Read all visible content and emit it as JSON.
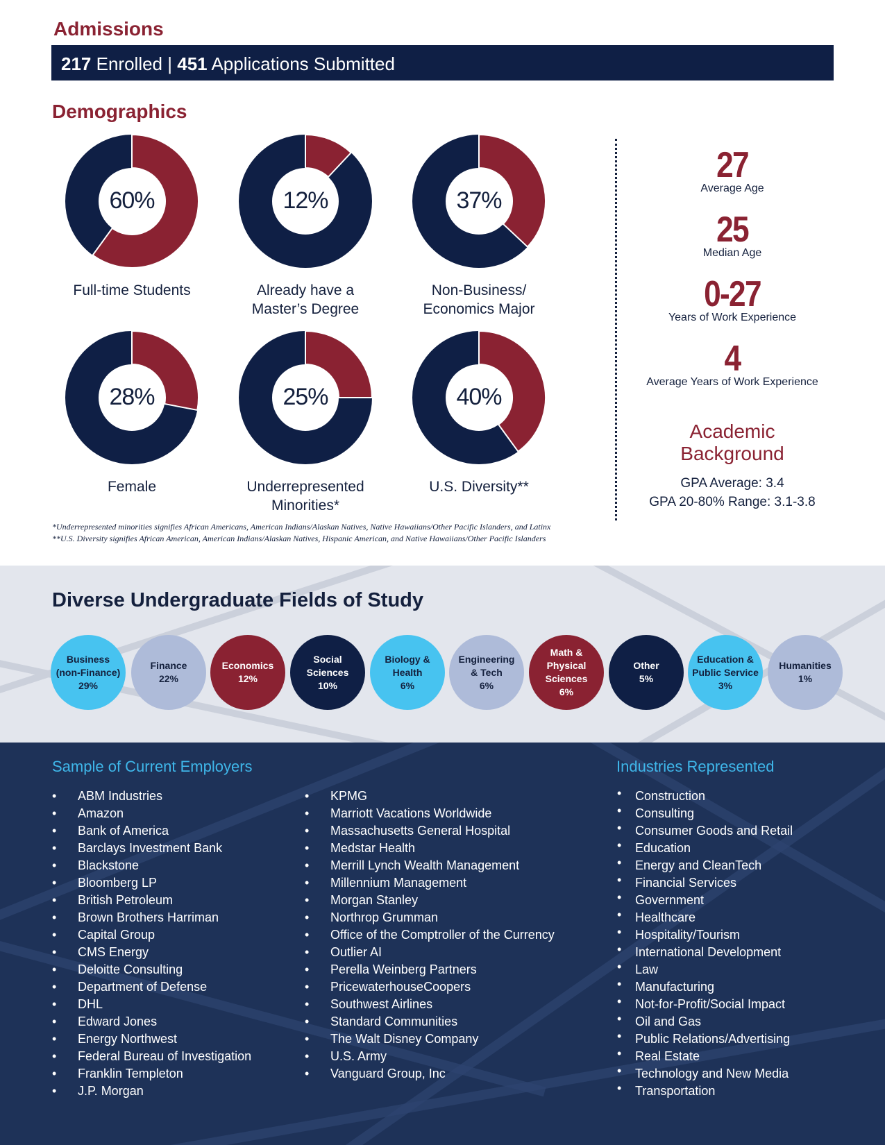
{
  "admissions": {
    "heading": "Admissions",
    "enrolled_count": "217",
    "enrolled_label": "Enrolled",
    "separator": "|",
    "applications_count": "451",
    "applications_label": "Applications Submitted"
  },
  "demographics": {
    "heading": "Demographics",
    "charts": [
      {
        "percent": "60%",
        "value": 60,
        "label": "Full-time Students"
      },
      {
        "percent": "12%",
        "value": 12,
        "label": "Already have a\nMaster’s Degree"
      },
      {
        "percent": "37%",
        "value": 37,
        "label": "Non-Business/\nEconomics Major"
      },
      {
        "percent": "28%",
        "value": 28,
        "label": "Female"
      },
      {
        "percent": "25%",
        "value": 25,
        "label": "Underrepresented\nMinorities*"
      },
      {
        "percent": "40%",
        "value": 40,
        "label": "U.S. Diversity**"
      }
    ],
    "footnotes": [
      "*Underrepresented minorities signifies African Americans, American Indians/Alaskan Natives, Native Hawaiians/Other Pacific Islanders, and Latinx",
      "**U.S. Diversity signifies African American,  American Indians/Alaskan Natives, Hispanic American, and Native Hawaiians/Other Pacific Islanders"
    ]
  },
  "stats": [
    {
      "value": "27",
      "label": "Average Age"
    },
    {
      "value": "25",
      "label": "Median Age"
    },
    {
      "value": "0-27",
      "label": "Years of Work Experience"
    },
    {
      "value": "4",
      "label": "Average Years of Work Experience"
    }
  ],
  "academic": {
    "heading_line1": "Academic",
    "heading_line2": "Background",
    "gpa_average": "GPA Average: 3.4",
    "gpa_range": "GPA 20-80% Range: 3.1-3.8"
  },
  "fields": {
    "heading": "Diverse Undergraduate Fields of Study",
    "items": [
      {
        "name": "Business\n(non-Finance)",
        "percent": "29%",
        "bg": "#47c3f0",
        "fg": "#14203d"
      },
      {
        "name": "Finance",
        "percent": "22%",
        "bg": "#aebbd9",
        "fg": "#14203d"
      },
      {
        "name": "Economics",
        "percent": "12%",
        "bg": "#8a2232",
        "fg": "#ffffff"
      },
      {
        "name": "Social\nSciences",
        "percent": "10%",
        "bg": "#0f1f45",
        "fg": "#ffffff"
      },
      {
        "name": "Biology &\nHealth",
        "percent": "6%",
        "bg": "#47c3f0",
        "fg": "#14203d"
      },
      {
        "name": "Engineering\n& Tech",
        "percent": "6%",
        "bg": "#aebbd9",
        "fg": "#14203d"
      },
      {
        "name": "Math &\nPhysical\nSciences",
        "percent": "6%",
        "bg": "#8a2232",
        "fg": "#ffffff"
      },
      {
        "name": "Other",
        "percent": "5%",
        "bg": "#0f1f45",
        "fg": "#ffffff"
      },
      {
        "name": "Education &\nPublic Service",
        "percent": "3%",
        "bg": "#47c3f0",
        "fg": "#14203d"
      },
      {
        "name": "Humanities",
        "percent": "1%",
        "bg": "#aebbd9",
        "fg": "#14203d"
      }
    ]
  },
  "employers": {
    "heading": "Sample of Current Employers",
    "column1": [
      "ABM Industries",
      "Amazon",
      "Bank of America",
      "Barclays Investment Bank",
      "Blackstone",
      "Bloomberg LP",
      "British Petroleum",
      "Brown Brothers Harriman",
      "Capital Group",
      "CMS Energy",
      "Deloitte Consulting",
      "Department of Defense",
      "DHL",
      "Edward Jones",
      "Energy Northwest",
      "Federal Bureau of Investigation",
      "Franklin Templeton",
      "J.P. Morgan"
    ],
    "column2": [
      "KPMG",
      "Marriott Vacations Worldwide",
      "Massachusetts General Hospital",
      "Medstar Health",
      "Merrill Lynch Wealth Management",
      "Millennium Management",
      "Morgan Stanley",
      "Northrop Grumman",
      "Office of the Comptroller of the Currency",
      "Outlier AI",
      "Perella Weinberg Partners",
      "PricewaterhouseCoopers",
      "Southwest Airlines",
      "Standard Communities",
      "The Walt Disney Company",
      "U.S. Army",
      "Vanguard Group, Inc"
    ]
  },
  "industries": {
    "heading": "Industries Represented",
    "items": [
      "Construction",
      "Consulting",
      "Consumer Goods and Retail",
      "Education",
      "Energy and CleanTech",
      "Financial Services",
      "Government",
      "Healthcare",
      "Hospitality/Tourism",
      "International Development",
      "Law",
      "Manufacturing",
      "Not-for-Profit/Social Impact",
      "Oil and Gas",
      "Public Relations/Advertising",
      "Real Estate",
      "Technology and New Media",
      "Transportation"
    ]
  },
  "colors": {
    "navy": "#0f1f45",
    "maroon": "#8a2232",
    "light_blue": "#47c3f0",
    "periwinkle": "#aebbd9",
    "section_blue": "#1e3258"
  }
}
